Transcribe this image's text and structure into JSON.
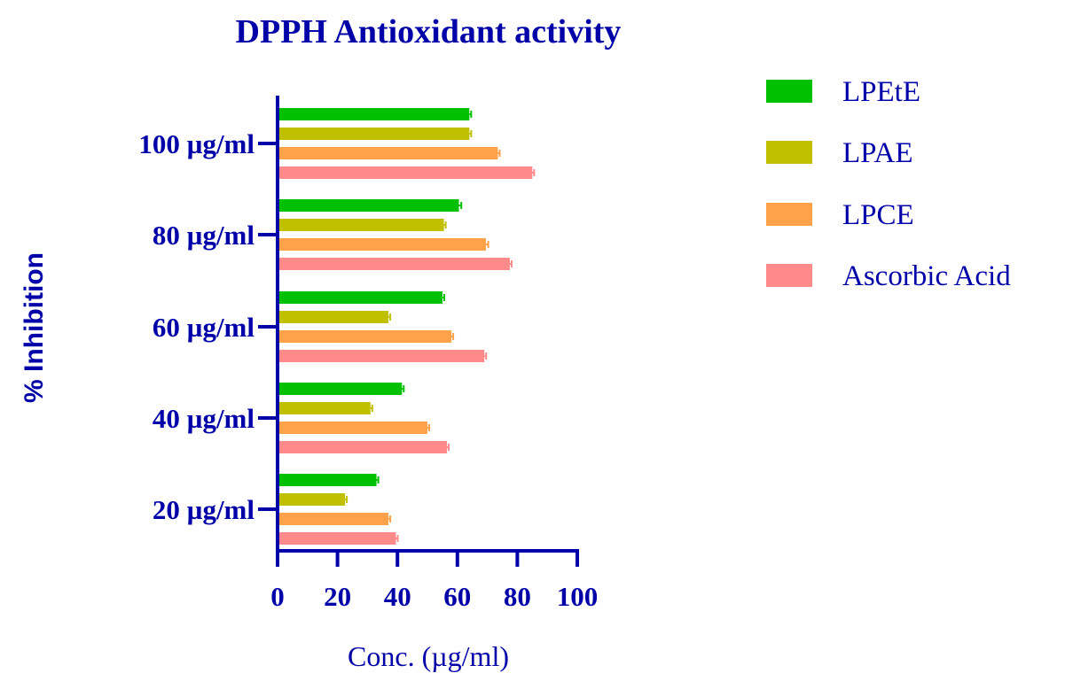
{
  "chart_data": {
    "type": "bar",
    "orientation": "horizontal",
    "title": "DPPH Antioxidant activity",
    "xlabel": "Conc. (µg/ml)",
    "ylabel": "% Inhibition",
    "xlim": [
      0,
      100
    ],
    "xticks": [
      "0",
      "20",
      "40",
      "60",
      "80",
      "100"
    ],
    "categories": [
      "20 µg/ml",
      "40 µg/ml",
      "60 µg/ml",
      "80 µg/ml",
      "100 µg/ml"
    ],
    "series": [
      {
        "name": "LPEtE",
        "color": "#00c000",
        "values": [
          33,
          41.5,
          55,
          60.5,
          64
        ]
      },
      {
        "name": "LPAE",
        "color": "#c0c000",
        "values": [
          22.5,
          31,
          37,
          55.5,
          64
        ]
      },
      {
        "name": "LPCE",
        "color": "#ffa24a",
        "values": [
          37,
          50,
          58,
          69.5,
          73.5
        ]
      },
      {
        "name": "Ascorbic Acid",
        "color": "#ff8a8a",
        "values": [
          39.5,
          56.5,
          69,
          77.5,
          85
        ]
      }
    ],
    "errors": [
      [
        0.6,
        0.6,
        0.6,
        0.8,
        0.6
      ],
      [
        0.6,
        0.6,
        0.6,
        0.6,
        0.6
      ],
      [
        0.6,
        0.6,
        0.6,
        0.8,
        0.6
      ],
      [
        0.6,
        0.6,
        0.6,
        0.6,
        0.6
      ]
    ],
    "legend_position": "right",
    "grid": false,
    "axis_color": "#0000a8"
  }
}
